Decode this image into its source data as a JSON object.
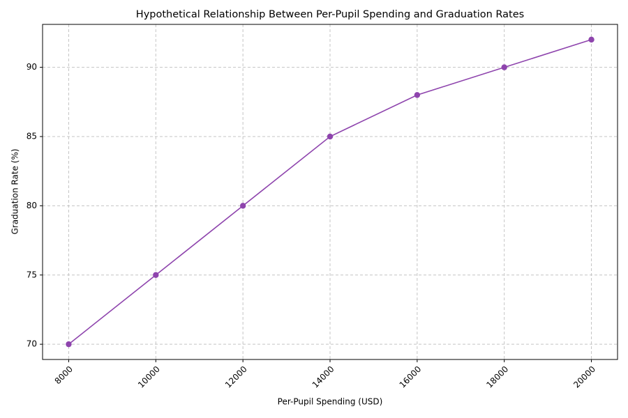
{
  "chart_data": {
    "type": "line",
    "title": "Hypothetical Relationship Between Per-Pupil Spending and Graduation Rates",
    "x_label": "Per-Pupil Spending (USD)",
    "y_label": "Graduation Rate (%)",
    "x": [
      8000,
      10000,
      12000,
      14000,
      16000,
      18000,
      20000
    ],
    "values": [
      70,
      75,
      80,
      85,
      88,
      90,
      92
    ],
    "color": "#8e44ad",
    "xlim": [
      7400,
      20600
    ],
    "xticks": [
      8000,
      10000,
      12000,
      14000,
      16000,
      18000,
      20000
    ],
    "ylim": [
      68.9,
      93.1
    ],
    "yticks": [
      70,
      75,
      80,
      85,
      90
    ],
    "grid": true,
    "markers": true
  }
}
